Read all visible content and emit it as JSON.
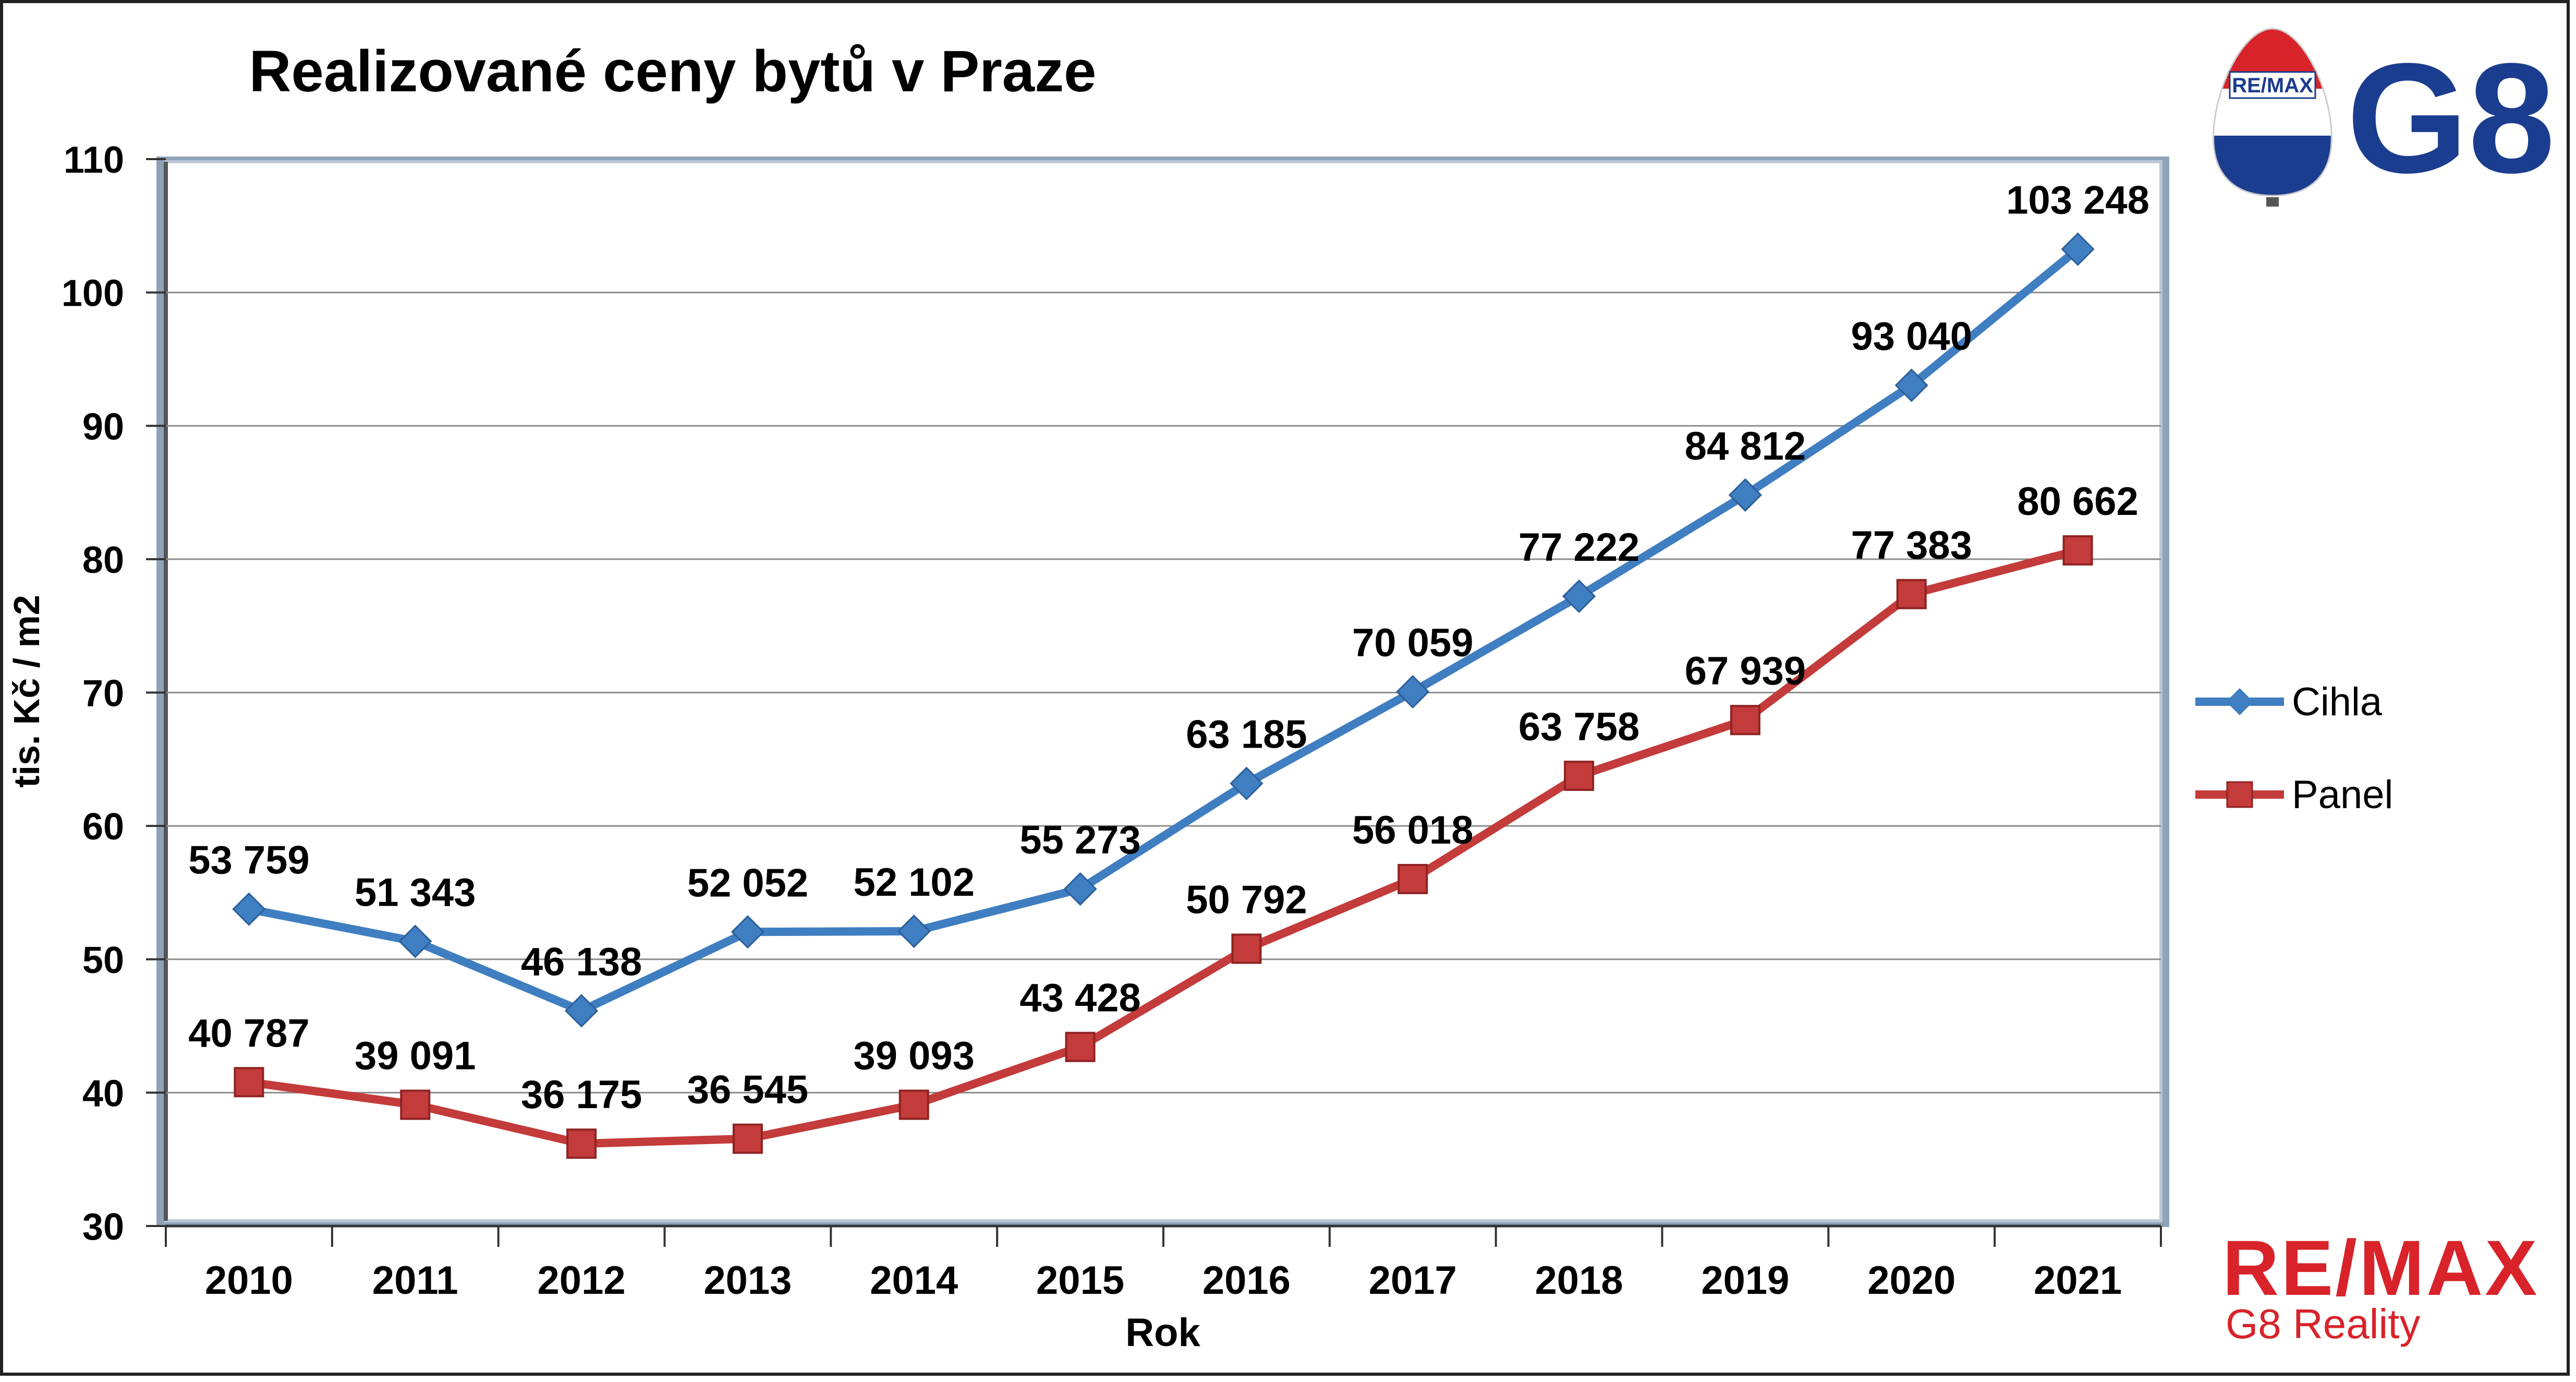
{
  "chart_data": {
    "type": "line",
    "title": "Realizované ceny bytů v Praze",
    "xlabel": "Rok",
    "ylabel": "tis. Kč / m2",
    "ylim": [
      30,
      110
    ],
    "yticks": [
      30,
      40,
      50,
      60,
      70,
      80,
      90,
      100,
      110
    ],
    "grid": true,
    "legend_position": "right",
    "categories": [
      "2010",
      "2011",
      "2012",
      "2013",
      "2014",
      "2015",
      "2016",
      "2017",
      "2018",
      "2019",
      "2020",
      "2021"
    ],
    "series": [
      {
        "name": "Cihla",
        "marker": "diamond",
        "color": "#3f7ec1",
        "values": [
          53.759,
          51.343,
          46.138,
          52.052,
          52.102,
          55.273,
          63.185,
          70.059,
          77.222,
          84.812,
          93.04,
          103.248
        ],
        "labels": [
          "53 759",
          "51 343",
          "46 138",
          "52 052",
          "52 102",
          "55 273",
          "63 185",
          "70 059",
          "77 222",
          "84 812",
          "93 040",
          "103 248"
        ]
      },
      {
        "name": "Panel",
        "marker": "square",
        "color": "#c33b3a",
        "values": [
          40.787,
          39.091,
          36.175,
          36.545,
          39.093,
          43.428,
          50.792,
          56.018,
          63.758,
          67.939,
          77.383,
          80.662
        ],
        "labels": [
          "40 787",
          "39 091",
          "36 175",
          "36 545",
          "39 093",
          "43 428",
          "50 792",
          "56 018",
          "63 758",
          "67 939",
          "77 383",
          "80 662"
        ]
      }
    ]
  },
  "branding": {
    "balloon_logo_text": "RE/MAX",
    "g8_logo_text": "G8",
    "wordmark": "RE/MAX",
    "subtitle": "G8 Reality",
    "brand_red": "#d8232a",
    "brand_blue": "#1b3d8f"
  }
}
